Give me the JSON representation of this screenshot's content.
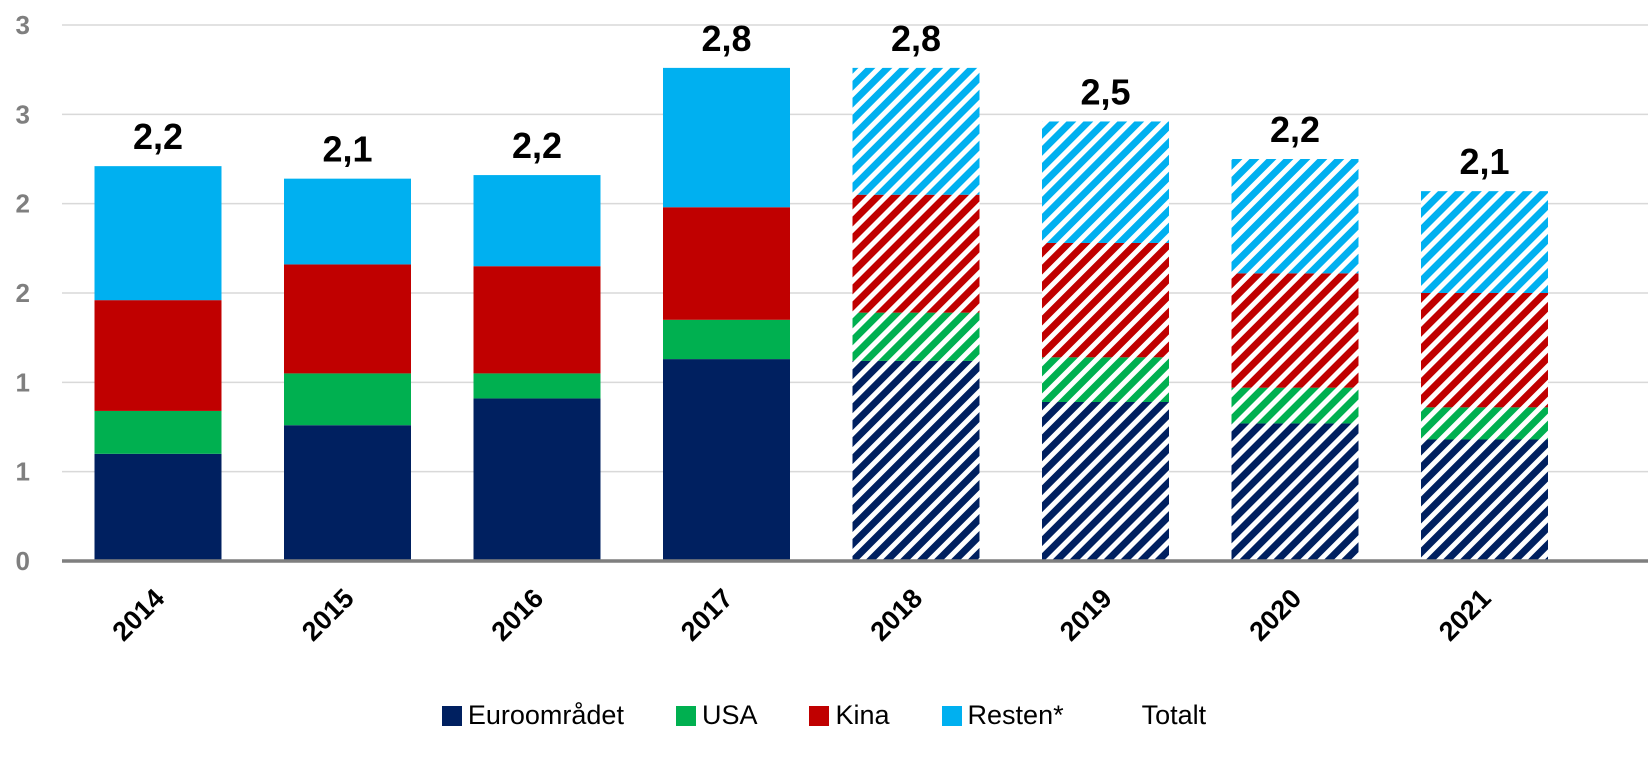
{
  "chart_data": {
    "type": "bar",
    "stacked": true,
    "categories": [
      "2014",
      "2015",
      "2016",
      "2017",
      "2018",
      "2019",
      "2020",
      "2021"
    ],
    "forecast_from_index": 4,
    "series": [
      {
        "name": "Euroområdet",
        "color": "#002060",
        "values": [
          0.6,
          0.76,
          0.91,
          1.13,
          1.12,
          0.89,
          0.77,
          0.68
        ]
      },
      {
        "name": "USA",
        "color": "#00b050",
        "values": [
          0.24,
          0.29,
          0.14,
          0.22,
          0.27,
          0.25,
          0.2,
          0.18
        ]
      },
      {
        "name": "Kina",
        "color": "#c00000",
        "values": [
          0.62,
          0.61,
          0.6,
          0.63,
          0.66,
          0.64,
          0.64,
          0.64
        ]
      },
      {
        "name": "Resten*",
        "color": "#00b0f0",
        "values": [
          0.75,
          0.48,
          0.51,
          0.78,
          0.71,
          0.68,
          0.64,
          0.57
        ]
      }
    ],
    "totals_series_name": "Totalt",
    "totals": [
      "2,2",
      "2,1",
      "2,2",
      "2,8",
      "2,8",
      "2,5",
      "2,2",
      "2,1"
    ],
    "y_ticks": [
      "0",
      "1",
      "1",
      "2",
      "2",
      "3",
      "3"
    ],
    "ylim": [
      0,
      3
    ],
    "grid": true,
    "legend_position": "bottom"
  }
}
